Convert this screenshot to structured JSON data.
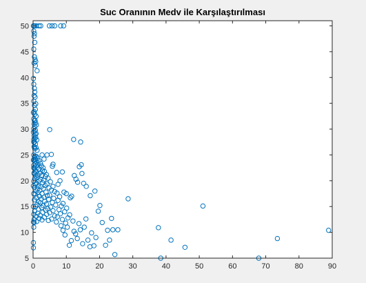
{
  "chart_data": {
    "type": "scatter",
    "title": "Suc Oranının Medv ile Karşılaştırılması",
    "xlabel": "",
    "ylabel": "",
    "xlim": [
      0,
      90
    ],
    "ylim": [
      5,
      51
    ],
    "xticks": [
      "0",
      "10",
      "20",
      "30",
      "40",
      "50",
      "60",
      "70",
      "80",
      "90"
    ],
    "yticks": [
      "5",
      "10",
      "15",
      "20",
      "25",
      "30",
      "35",
      "40",
      "45",
      "50"
    ],
    "grid": false,
    "marker_color": "#0072bd",
    "marker": "circle-open",
    "series": [
      {
        "points": [
          [
            0.1,
            50
          ],
          [
            0.3,
            50
          ],
          [
            0.6,
            50
          ],
          [
            1.0,
            50
          ],
          [
            1.8,
            50
          ],
          [
            2.3,
            50
          ],
          [
            4.9,
            50
          ],
          [
            5.7,
            50
          ],
          [
            6.5,
            50
          ],
          [
            8.3,
            50
          ],
          [
            9.2,
            50
          ],
          [
            0.2,
            49
          ],
          [
            0.4,
            48.5
          ],
          [
            0.3,
            48
          ],
          [
            0.5,
            46.8
          ],
          [
            0.2,
            45.5
          ],
          [
            0.4,
            44
          ],
          [
            0.6,
            43.5
          ],
          [
            0.8,
            43.1
          ],
          [
            0.3,
            42.8
          ],
          [
            0.7,
            42.3
          ],
          [
            1.2,
            41.3
          ],
          [
            0.1,
            39.8
          ],
          [
            0.2,
            38.7
          ],
          [
            0.4,
            37.9
          ],
          [
            0.5,
            37.2
          ],
          [
            0.3,
            36.5
          ],
          [
            0.6,
            36.2
          ],
          [
            0.2,
            35.4
          ],
          [
            0.8,
            34.9
          ],
          [
            0.4,
            34.6
          ],
          [
            0.7,
            33.8
          ],
          [
            0.3,
            33.4
          ],
          [
            0.1,
            33.2
          ],
          [
            0.5,
            32.9
          ],
          [
            0.9,
            32.5
          ],
          [
            0.2,
            32.0
          ],
          [
            0.6,
            31.7
          ],
          [
            0.4,
            31.6
          ],
          [
            0.8,
            31.2
          ],
          [
            0.3,
            31.0
          ],
          [
            1.0,
            30.8
          ],
          [
            0.5,
            30.5
          ],
          [
            0.2,
            30.1
          ],
          [
            0.7,
            29.8
          ],
          [
            0.4,
            29.6
          ],
          [
            0.1,
            29.4
          ],
          [
            0.9,
            29.1
          ],
          [
            0.6,
            29.0
          ],
          [
            0.3,
            28.7
          ],
          [
            0.8,
            28.4
          ],
          [
            0.5,
            28.2
          ],
          [
            0.2,
            28.0
          ],
          [
            1.1,
            27.9
          ],
          [
            0.4,
            27.5
          ],
          [
            0.7,
            27.1
          ],
          [
            0.3,
            26.6
          ],
          [
            0.9,
            26.4
          ],
          [
            0.5,
            26.2
          ],
          [
            1.2,
            25.9
          ],
          [
            5.0,
            29.9
          ],
          [
            12.2,
            28.0
          ],
          [
            14.3,
            27.5
          ],
          [
            0.2,
            25.0
          ],
          [
            0.6,
            24.8
          ],
          [
            1.0,
            24.7
          ],
          [
            0.4,
            24.5
          ],
          [
            1.4,
            24.4
          ],
          [
            0.8,
            24.1
          ],
          [
            0.3,
            24.0
          ],
          [
            1.8,
            23.9
          ],
          [
            0.5,
            23.8
          ],
          [
            1.1,
            23.6
          ],
          [
            2.2,
            23.4
          ],
          [
            0.7,
            23.3
          ],
          [
            1.5,
            23.1
          ],
          [
            0.2,
            23.0
          ],
          [
            2.5,
            22.9
          ],
          [
            0.9,
            22.8
          ],
          [
            1.3,
            22.6
          ],
          [
            3.0,
            22.5
          ],
          [
            0.4,
            22.4
          ],
          [
            1.7,
            22.2
          ],
          [
            2.8,
            22.0
          ],
          [
            0.6,
            21.9
          ],
          [
            3.4,
            21.8
          ],
          [
            1.0,
            21.7
          ],
          [
            2.1,
            21.5
          ],
          [
            0.3,
            21.4
          ],
          [
            4.0,
            21.2
          ],
          [
            1.5,
            21.1
          ],
          [
            2.6,
            21.0
          ],
          [
            0.8,
            20.9
          ],
          [
            3.7,
            20.8
          ],
          [
            1.2,
            20.6
          ],
          [
            4.5,
            20.5
          ],
          [
            0.5,
            20.4
          ],
          [
            2.3,
            20.3
          ],
          [
            3.2,
            20.1
          ],
          [
            1.8,
            20.0
          ],
          [
            0.2,
            19.9
          ],
          [
            5.2,
            19.8
          ],
          [
            2.9,
            19.6
          ],
          [
            1.1,
            19.5
          ],
          [
            4.2,
            19.4
          ],
          [
            0.7,
            19.3
          ],
          [
            3.6,
            19.1
          ],
          [
            1.6,
            19.0
          ],
          [
            6.0,
            18.9
          ],
          [
            2.4,
            18.8
          ],
          [
            0.4,
            18.7
          ],
          [
            4.8,
            18.6
          ],
          [
            3.1,
            18.5
          ],
          [
            1.3,
            18.4
          ],
          [
            5.5,
            18.2
          ],
          [
            2.0,
            18.1
          ],
          [
            0.9,
            18.0
          ],
          [
            6.5,
            17.9
          ],
          [
            3.9,
            17.8
          ],
          [
            1.5,
            17.7
          ],
          [
            7.2,
            17.6
          ],
          [
            2.7,
            17.5
          ],
          [
            0.6,
            17.4
          ],
          [
            5.0,
            17.2
          ],
          [
            4.3,
            17.1
          ],
          [
            1.9,
            17.0
          ],
          [
            8.0,
            16.9
          ],
          [
            3.3,
            16.8
          ],
          [
            1.0,
            16.7
          ],
          [
            6.2,
            16.6
          ],
          [
            2.5,
            16.5
          ],
          [
            4.7,
            16.4
          ],
          [
            0.4,
            16.3
          ],
          [
            7.5,
            16.2
          ],
          [
            3.5,
            16.0
          ],
          [
            1.7,
            15.9
          ],
          [
            5.8,
            15.8
          ],
          [
            2.2,
            15.7
          ],
          [
            9.0,
            15.6
          ],
          [
            4.0,
            15.5
          ],
          [
            1.2,
            15.4
          ],
          [
            6.8,
            15.3
          ],
          [
            3.0,
            15.2
          ],
          [
            8.5,
            15.1
          ],
          [
            0.8,
            15.0
          ],
          [
            5.3,
            14.9
          ],
          [
            2.6,
            14.8
          ],
          [
            10.1,
            14.7
          ],
          [
            4.4,
            14.6
          ],
          [
            1.6,
            14.5
          ],
          [
            7.8,
            14.4
          ],
          [
            3.8,
            14.3
          ],
          [
            6.0,
            14.2
          ],
          [
            0.5,
            14.1
          ],
          [
            9.5,
            14.0
          ],
          [
            2.9,
            13.9
          ],
          [
            5.0,
            13.8
          ],
          [
            1.4,
            13.7
          ],
          [
            8.2,
            13.6
          ],
          [
            4.1,
            13.5
          ],
          [
            11.0,
            13.4
          ],
          [
            2.1,
            13.3
          ],
          [
            6.5,
            13.2
          ],
          [
            0.9,
            13.1
          ],
          [
            7.3,
            13.0
          ],
          [
            3.4,
            12.9
          ],
          [
            10.5,
            12.8
          ],
          [
            1.8,
            12.7
          ],
          [
            5.6,
            12.6
          ],
          [
            8.8,
            12.5
          ],
          [
            2.7,
            12.4
          ],
          [
            4.6,
            12.3
          ],
          [
            12.0,
            12.2
          ],
          [
            1.1,
            12.1
          ],
          [
            7.0,
            12.0
          ],
          [
            0.3,
            11.9
          ],
          [
            9.8,
            11.8
          ],
          [
            4.2,
            25.0
          ],
          [
            5.5,
            25.1
          ],
          [
            6.0,
            23.2
          ],
          [
            2.7,
            25.0
          ],
          [
            3.3,
            24.2
          ],
          [
            5.8,
            22.8
          ],
          [
            7.1,
            21.6
          ],
          [
            7.5,
            19.3
          ],
          [
            8.1,
            20.0
          ],
          [
            8.8,
            21.7
          ],
          [
            9.3,
            17.8
          ],
          [
            10.0,
            17.5
          ],
          [
            11.2,
            16.7
          ],
          [
            11.6,
            17.0
          ],
          [
            12.4,
            21.0
          ],
          [
            12.9,
            20.3
          ],
          [
            13.4,
            19.7
          ],
          [
            13.9,
            22.7
          ],
          [
            14.5,
            23.1
          ],
          [
            14.7,
            21.4
          ],
          [
            15.2,
            19.5
          ],
          [
            16.0,
            18.9
          ],
          [
            17.2,
            17.1
          ],
          [
            18.6,
            18.0
          ],
          [
            8.4,
            11.3
          ],
          [
            9.0,
            10.4
          ],
          [
            9.6,
            9.5
          ],
          [
            10.3,
            11.0
          ],
          [
            10.9,
            7.5
          ],
          [
            11.5,
            8.4
          ],
          [
            12.3,
            10.2
          ],
          [
            12.8,
            9.7
          ],
          [
            13.3,
            8.8
          ],
          [
            13.8,
            11.7
          ],
          [
            14.2,
            10.5
          ],
          [
            14.9,
            7.8
          ],
          [
            15.4,
            11.0
          ],
          [
            15.9,
            12.6
          ],
          [
            16.5,
            8.5
          ],
          [
            17.1,
            7.2
          ],
          [
            17.6,
            9.9
          ],
          [
            18.3,
            7.4
          ],
          [
            18.9,
            9.0
          ],
          [
            19.6,
            14.1
          ],
          [
            20.1,
            15.2
          ],
          [
            20.8,
            11.9
          ],
          [
            21.8,
            7.5
          ],
          [
            22.4,
            10.4
          ],
          [
            23.0,
            8.5
          ],
          [
            23.6,
            12.7
          ],
          [
            24.0,
            10.5
          ],
          [
            24.6,
            5.7
          ],
          [
            25.5,
            10.5
          ],
          [
            28.6,
            16.5
          ],
          [
            37.7,
            10.9
          ],
          [
            38.4,
            5.0
          ],
          [
            41.5,
            8.5
          ],
          [
            45.7,
            7.1
          ],
          [
            51.1,
            15.1
          ],
          [
            67.9,
            5.0
          ],
          [
            73.5,
            8.8
          ],
          [
            88.9,
            10.4
          ],
          [
            0.1,
            15.0
          ],
          [
            0.2,
            13.5
          ],
          [
            0.3,
            12.5
          ],
          [
            0.1,
            12.0
          ],
          [
            0.2,
            11.0
          ],
          [
            0.1,
            8.0
          ],
          [
            0.1,
            7.0
          ],
          [
            0.2,
            17.5
          ],
          [
            0.1,
            19.0
          ],
          [
            0.3,
            21.5
          ],
          [
            0.2,
            22.5
          ],
          [
            0.1,
            24.0
          ],
          [
            0.4,
            26.5
          ],
          [
            0.2,
            27.5
          ]
        ]
      }
    ]
  }
}
